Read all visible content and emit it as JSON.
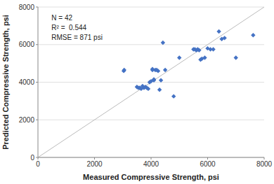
{
  "chart_data": {
    "type": "scatter",
    "xlabel": "Measured Compressive Strength, psi",
    "ylabel": "Predicted Compressive Strength, psi",
    "annotation": "N = 42\nR² =  0.544\nRMSE = 871 psi",
    "x": [
      3034,
      3050,
      3500,
      3550,
      3600,
      3650,
      3700,
      3750,
      3800,
      3850,
      3900,
      3950,
      4000,
      4050,
      4050,
      4100,
      4100,
      4150,
      4200,
      4250,
      4300,
      4350,
      4420,
      4500,
      4800,
      5000,
      5500,
      5550,
      5600,
      5650,
      5700,
      5750,
      5800,
      5900,
      6000,
      6100,
      6200,
      6400,
      6500,
      6600,
      7000,
      7611
    ],
    "series": [
      {
        "color": "#4472c4",
        "marker": "diamond",
        "values": [
          4600,
          4650,
          3750,
          3700,
          3700,
          3650,
          3800,
          3700,
          3750,
          3700,
          3650,
          4000,
          4050,
          4650,
          4700,
          4100,
          4150,
          4650,
          4650,
          4600,
          3600,
          4100,
          6100,
          4650,
          3250,
          5300,
          5750,
          5750,
          5700,
          5750,
          5700,
          5200,
          5250,
          5300,
          5800,
          5750,
          5750,
          6700,
          6300,
          6350,
          5300,
          6500
        ]
      }
    ],
    "xlim": [
      0,
      8000
    ],
    "ylim": [
      0,
      8000
    ],
    "xticks": [
      0,
      2000,
      4000,
      6000,
      8000
    ],
    "yticks": [
      0,
      2000,
      4000,
      6000,
      8000
    ],
    "grid": "y"
  }
}
